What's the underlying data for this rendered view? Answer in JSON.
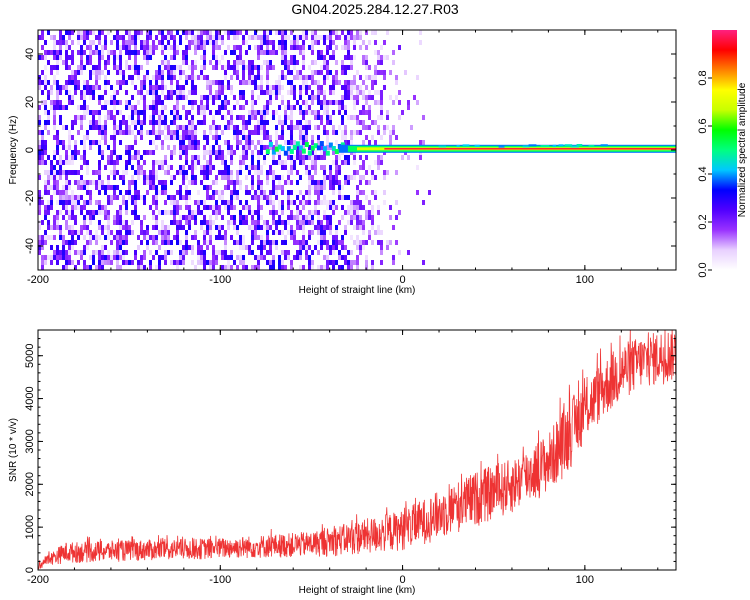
{
  "figure_title": "GN04.2025.284.12.27.R03",
  "chart_data": [
    {
      "type": "heatmap",
      "title": "",
      "xlabel": "Height of straight line (km)",
      "ylabel": "Frequency (Hz)",
      "xlim": [
        -200,
        150
      ],
      "ylim": [
        -50,
        50
      ],
      "xticks": [
        "-200",
        "-100",
        "0",
        "100"
      ],
      "yticks": [
        "40",
        "20",
        "0",
        "-20",
        "-40"
      ],
      "colorbar": {
        "label": "Normalized spectral amplitude",
        "range": [
          0,
          1
        ],
        "ticks": [
          "0.0",
          "0.2",
          "0.4",
          "0.6",
          "0.8"
        ],
        "colormap": [
          "#ffffff",
          "#e8d0ff",
          "#9932ff",
          "#5000ff",
          "#0000ff",
          "#00c8ff",
          "#00ff80",
          "#00ff00",
          "#c8ff00",
          "#ffff00",
          "#ff8000",
          "#ff0000",
          "#ff2080"
        ]
      },
      "features": {
        "noise_region_x": [
          -200,
          0
        ],
        "noise_dense_until_x": -30,
        "ridge_frequency": 0.5,
        "ridge_start_x": -75,
        "ridge_peak_amplitude": 1.0
      }
    },
    {
      "type": "line",
      "title": "",
      "xlabel": "Height of straight line (km)",
      "ylabel": "SNR (10 * v/v)",
      "xlim": [
        -200,
        150
      ],
      "ylim": [
        0,
        5600
      ],
      "xticks": [
        "-200",
        "-100",
        "0",
        "100"
      ],
      "yticks": [
        "0",
        "1000",
        "2000",
        "3000",
        "4000",
        "5000"
      ],
      "series": [
        {
          "color": "#ee3333",
          "envelope": {
            "x": [
              -200,
              -195,
              -185,
              -150,
              -100,
              -50,
              -20,
              0,
              20,
              40,
              60,
              80,
              90,
              100,
              110,
              120,
              130,
              150
            ],
            "lower": [
              0,
              100,
              150,
              200,
              250,
              300,
              350,
              450,
              700,
              1000,
              1300,
              1800,
              2200,
              3000,
              3500,
              3900,
              4200,
              4400
            ],
            "upper": [
              200,
              350,
              650,
              700,
              750,
              900,
              1200,
              1400,
              1850,
              2300,
              2600,
              3200,
              3900,
              4400,
              4900,
              5300,
              5450,
              5700
            ]
          }
        }
      ]
    }
  ]
}
